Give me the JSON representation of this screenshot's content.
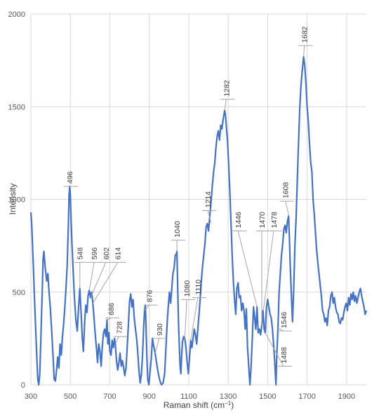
{
  "chart_data": {
    "type": "line",
    "xlabel": "Raman shift (cm",
    "xlabel_sup": "−1",
    "xlabel_end": ")",
    "ylabel": "Intensity",
    "xlim": [
      300,
      2000
    ],
    "ylim": [
      0,
      2000
    ],
    "x_ticks": [
      300,
      500,
      700,
      900,
      1100,
      1300,
      1500,
      1700,
      1900
    ],
    "y_ticks": [
      0,
      500,
      1000,
      1500,
      2000
    ],
    "grid": true,
    "line_color": "#4472c4",
    "leader_color": "#a6a6a6",
    "grid_color": "#d9d9d9",
    "series": [
      {
        "points": [
          [
            300,
            930
          ],
          [
            305,
            850
          ],
          [
            312,
            650
          ],
          [
            320,
            420
          ],
          [
            328,
            200
          ],
          [
            335,
            30
          ],
          [
            340,
            0
          ],
          [
            345,
            60
          ],
          [
            352,
            300
          ],
          [
            358,
            520
          ],
          [
            362,
            680
          ],
          [
            366,
            720
          ],
          [
            372,
            640
          ],
          [
            380,
            560
          ],
          [
            386,
            600
          ],
          [
            392,
            500
          ],
          [
            398,
            420
          ],
          [
            405,
            300
          ],
          [
            412,
            160
          ],
          [
            418,
            30
          ],
          [
            424,
            20
          ],
          [
            430,
            80
          ],
          [
            436,
            150
          ],
          [
            442,
            90
          ],
          [
            448,
            220
          ],
          [
            454,
            160
          ],
          [
            460,
            260
          ],
          [
            466,
            330
          ],
          [
            472,
            420
          ],
          [
            478,
            520
          ],
          [
            484,
            640
          ],
          [
            490,
            860
          ],
          [
            494,
            1030
          ],
          [
            497,
            1070
          ],
          [
            500,
            1020
          ],
          [
            504,
            880
          ],
          [
            508,
            760
          ],
          [
            514,
            620
          ],
          [
            520,
            480
          ],
          [
            528,
            350
          ],
          [
            535,
            290
          ],
          [
            542,
            420
          ],
          [
            548,
            520
          ],
          [
            554,
            400
          ],
          [
            560,
            260
          ],
          [
            566,
            180
          ],
          [
            572,
            330
          ],
          [
            578,
            430
          ],
          [
            584,
            390
          ],
          [
            590,
            480
          ],
          [
            596,
            510
          ],
          [
            602,
            470
          ],
          [
            608,
            500
          ],
          [
            614,
            440
          ],
          [
            620,
            360
          ],
          [
            626,
            270
          ],
          [
            632,
            200
          ],
          [
            638,
            120
          ],
          [
            644,
            220
          ],
          [
            650,
            180
          ],
          [
            656,
            100
          ],
          [
            662,
            210
          ],
          [
            668,
            280
          ],
          [
            674,
            300
          ],
          [
            680,
            260
          ],
          [
            686,
            350
          ],
          [
            690,
            220
          ],
          [
            695,
            280
          ],
          [
            700,
            180
          ],
          [
            706,
            160
          ],
          [
            712,
            240
          ],
          [
            718,
            200
          ],
          [
            724,
            250
          ],
          [
            728,
            220
          ],
          [
            734,
            130
          ],
          [
            740,
            80
          ],
          [
            746,
            120
          ],
          [
            752,
            170
          ],
          [
            758,
            100
          ],
          [
            764,
            130
          ],
          [
            770,
            90
          ],
          [
            776,
            50
          ],
          [
            782,
            90
          ],
          [
            788,
            200
          ],
          [
            794,
            320
          ],
          [
            800,
            450
          ],
          [
            806,
            490
          ],
          [
            812,
            420
          ],
          [
            818,
            460
          ],
          [
            824,
            360
          ],
          [
            830,
            300
          ],
          [
            836,
            250
          ],
          [
            842,
            170
          ],
          [
            848,
            70
          ],
          [
            854,
            10
          ],
          [
            860,
            60
          ],
          [
            866,
            160
          ],
          [
            872,
            320
          ],
          [
            876,
            400
          ],
          [
            880,
            430
          ],
          [
            884,
            300
          ],
          [
            888,
            150
          ],
          [
            892,
            30
          ],
          [
            898,
            0
          ],
          [
            904,
            70
          ],
          [
            910,
            140
          ],
          [
            916,
            250
          ],
          [
            922,
            210
          ],
          [
            930,
            170
          ],
          [
            938,
            110
          ],
          [
            946,
            60
          ],
          [
            954,
            20
          ],
          [
            962,
            0
          ],
          [
            970,
            10
          ],
          [
            978,
            60
          ],
          [
            984,
            190
          ],
          [
            990,
            320
          ],
          [
            996,
            420
          ],
          [
            1002,
            500
          ],
          [
            1008,
            440
          ],
          [
            1014,
            520
          ],
          [
            1020,
            600
          ],
          [
            1026,
            630
          ],
          [
            1032,
            700
          ],
          [
            1036,
            700
          ],
          [
            1040,
            720
          ],
          [
            1044,
            520
          ],
          [
            1048,
            340
          ],
          [
            1052,
            220
          ],
          [
            1056,
            100
          ],
          [
            1060,
            60
          ],
          [
            1064,
            150
          ],
          [
            1068,
            230
          ],
          [
            1074,
            260
          ],
          [
            1080,
            250
          ],
          [
            1086,
            200
          ],
          [
            1092,
            120
          ],
          [
            1098,
            60
          ],
          [
            1104,
            150
          ],
          [
            1110,
            240
          ],
          [
            1116,
            200
          ],
          [
            1122,
            250
          ],
          [
            1128,
            300
          ],
          [
            1134,
            270
          ],
          [
            1140,
            220
          ],
          [
            1146,
            300
          ],
          [
            1152,
            380
          ],
          [
            1158,
            460
          ],
          [
            1164,
            560
          ],
          [
            1170,
            640
          ],
          [
            1176,
            700
          ],
          [
            1182,
            760
          ],
          [
            1188,
            850
          ],
          [
            1194,
            870
          ],
          [
            1200,
            830
          ],
          [
            1206,
            900
          ],
          [
            1214,
            1000
          ],
          [
            1220,
            1080
          ],
          [
            1226,
            1150
          ],
          [
            1232,
            1200
          ],
          [
            1238,
            1280
          ],
          [
            1244,
            1340
          ],
          [
            1250,
            1370
          ],
          [
            1256,
            1320
          ],
          [
            1262,
            1400
          ],
          [
            1268,
            1380
          ],
          [
            1274,
            1430
          ],
          [
            1282,
            1480
          ],
          [
            1286,
            1460
          ],
          [
            1290,
            1400
          ],
          [
            1296,
            1320
          ],
          [
            1302,
            1200
          ],
          [
            1308,
            1050
          ],
          [
            1314,
            880
          ],
          [
            1320,
            700
          ],
          [
            1326,
            560
          ],
          [
            1332,
            460
          ],
          [
            1338,
            380
          ],
          [
            1344,
            520
          ],
          [
            1350,
            550
          ],
          [
            1356,
            470
          ],
          [
            1362,
            480
          ],
          [
            1368,
            400
          ],
          [
            1374,
            440
          ],
          [
            1380,
            400
          ],
          [
            1386,
            300
          ],
          [
            1392,
            410
          ],
          [
            1398,
            200
          ],
          [
            1404,
            100
          ],
          [
            1410,
            0
          ],
          [
            1416,
            100
          ],
          [
            1422,
            250
          ],
          [
            1428,
            420
          ],
          [
            1434,
            360
          ],
          [
            1440,
            300
          ],
          [
            1446,
            420
          ],
          [
            1452,
            280
          ],
          [
            1458,
            300
          ],
          [
            1464,
            270
          ],
          [
            1470,
            320
          ],
          [
            1476,
            400
          ],
          [
            1482,
            300
          ],
          [
            1488,
            280
          ],
          [
            1494,
            420
          ],
          [
            1500,
            460
          ],
          [
            1506,
            420
          ],
          [
            1512,
            380
          ],
          [
            1518,
            360
          ],
          [
            1524,
            300
          ],
          [
            1530,
            220
          ],
          [
            1536,
            120
          ],
          [
            1542,
            0
          ],
          [
            1546,
            150
          ],
          [
            1552,
            300
          ],
          [
            1558,
            500
          ],
          [
            1564,
            600
          ],
          [
            1570,
            700
          ],
          [
            1576,
            760
          ],
          [
            1582,
            840
          ],
          [
            1588,
            860
          ],
          [
            1594,
            820
          ],
          [
            1600,
            880
          ],
          [
            1606,
            910
          ],
          [
            1610,
            800
          ],
          [
            1614,
            650
          ],
          [
            1620,
            480
          ],
          [
            1626,
            340
          ],
          [
            1632,
            520
          ],
          [
            1638,
            750
          ],
          [
            1644,
            900
          ],
          [
            1650,
            1100
          ],
          [
            1656,
            1300
          ],
          [
            1662,
            1480
          ],
          [
            1668,
            1600
          ],
          [
            1674,
            1680
          ],
          [
            1682,
            1770
          ],
          [
            1688,
            1720
          ],
          [
            1694,
            1620
          ],
          [
            1700,
            1500
          ],
          [
            1706,
            1420
          ],
          [
            1712,
            1300
          ],
          [
            1718,
            1200
          ],
          [
            1724,
            1150
          ],
          [
            1730,
            1000
          ],
          [
            1736,
            920
          ],
          [
            1742,
            820
          ],
          [
            1748,
            730
          ],
          [
            1754,
            660
          ],
          [
            1760,
            600
          ],
          [
            1766,
            540
          ],
          [
            1772,
            480
          ],
          [
            1778,
            400
          ],
          [
            1784,
            380
          ],
          [
            1790,
            340
          ],
          [
            1796,
            360
          ],
          [
            1802,
            320
          ],
          [
            1808,
            400
          ],
          [
            1814,
            420
          ],
          [
            1820,
            480
          ],
          [
            1826,
            500
          ],
          [
            1832,
            440
          ],
          [
            1838,
            470
          ],
          [
            1844,
            420
          ],
          [
            1850,
            390
          ],
          [
            1856,
            380
          ],
          [
            1862,
            340
          ],
          [
            1868,
            330
          ],
          [
            1874,
            360
          ],
          [
            1880,
            350
          ],
          [
            1886,
            390
          ],
          [
            1892,
            420
          ],
          [
            1898,
            440
          ],
          [
            1904,
            400
          ],
          [
            1910,
            470
          ],
          [
            1916,
            430
          ],
          [
            1922,
            490
          ],
          [
            1928,
            460
          ],
          [
            1934,
            500
          ],
          [
            1940,
            450
          ],
          [
            1946,
            480
          ],
          [
            1952,
            440
          ],
          [
            1958,
            470
          ],
          [
            1964,
            500
          ],
          [
            1970,
            520
          ],
          [
            1976,
            480
          ],
          [
            1982,
            450
          ],
          [
            1988,
            420
          ],
          [
            1994,
            380
          ],
          [
            2000,
            400
          ]
        ]
      }
    ],
    "peak_labels": [
      {
        "text": "496",
        "x": 496,
        "y": 1070,
        "lx": 496,
        "ly": 1070
      },
      {
        "text": "548",
        "x": 548,
        "y": 520,
        "lx": 548,
        "ly": 660
      },
      {
        "text": "596",
        "x": 596,
        "y": 510,
        "lx": 620,
        "ly": 660
      },
      {
        "text": "602",
        "x": 602,
        "y": 470,
        "lx": 680,
        "ly": 660
      },
      {
        "text": "614",
        "x": 614,
        "y": 440,
        "lx": 740,
        "ly": 660
      },
      {
        "text": "686",
        "x": 686,
        "y": 350,
        "lx": 706,
        "ly": 360
      },
      {
        "text": "728",
        "x": 728,
        "y": 220,
        "lx": 746,
        "ly": 260
      },
      {
        "text": "876",
        "x": 876,
        "y": 400,
        "lx": 900,
        "ly": 430
      },
      {
        "text": "930",
        "x": 930,
        "y": 170,
        "lx": 950,
        "ly": 250
      },
      {
        "text": "1040",
        "x": 1040,
        "y": 720,
        "lx": 1040,
        "ly": 780
      },
      {
        "text": "1080",
        "x": 1080,
        "y": 250,
        "lx": 1090,
        "ly": 460
      },
      {
        "text": "1110",
        "x": 1110,
        "y": 240,
        "lx": 1146,
        "ly": 470
      },
      {
        "text": "1214",
        "x": 1214,
        "y": 870,
        "lx": 1196,
        "ly": 940
      },
      {
        "text": "1282",
        "x": 1282,
        "y": 1480,
        "lx": 1290,
        "ly": 1540
      },
      {
        "text": "1446",
        "x": 1446,
        "y": 420,
        "lx": 1350,
        "ly": 830
      },
      {
        "text": "1470",
        "x": 1470,
        "y": 320,
        "lx": 1470,
        "ly": 830
      },
      {
        "text": "1478",
        "x": 1478,
        "y": 400,
        "lx": 1530,
        "ly": 830
      },
      {
        "text": "1608",
        "x": 1608,
        "y": 910,
        "lx": 1590,
        "ly": 990
      },
      {
        "text": "1682",
        "x": 1682,
        "y": 1770,
        "lx": 1686,
        "ly": 1830
      },
      {
        "text": "1546",
        "x": 1546,
        "y": 310,
        "lx": 1580,
        "ly": 290
      },
      {
        "text": "1488",
        "x": 1488,
        "y": 280,
        "lx": 1580,
        "ly": 100
      }
    ]
  }
}
